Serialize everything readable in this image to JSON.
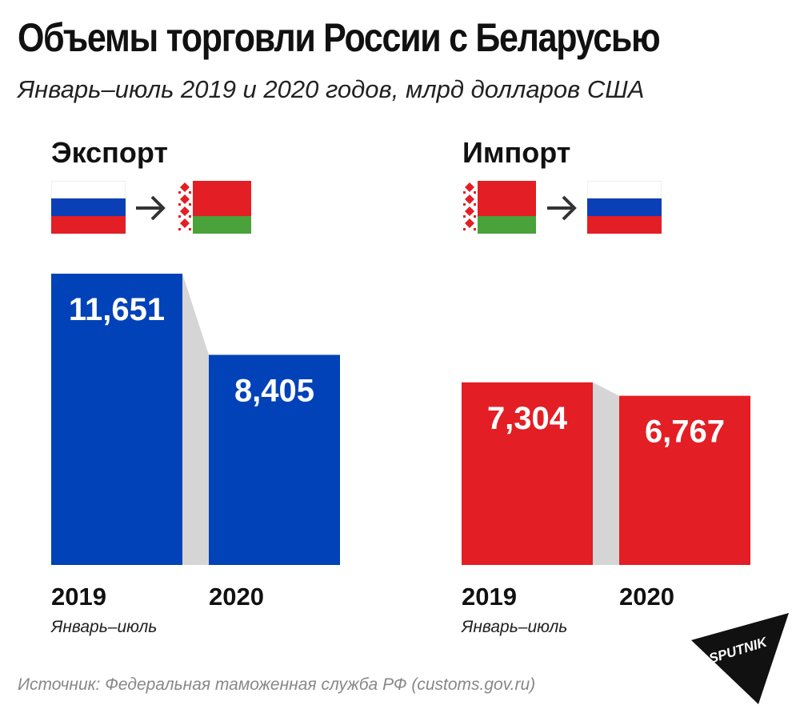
{
  "header": {
    "title": "Объемы торговли России с Беларусью",
    "subtitle": "Январь–июль 2019 и 2020 годов, млрд долларов США"
  },
  "colors": {
    "export_bar": "#0242b8",
    "import_bar": "#e31e24",
    "connector": "#d5d5d5",
    "label": "#ffffff"
  },
  "chart_data": [
    {
      "type": "bar",
      "title": "Экспорт",
      "flags_from_to": [
        "russia-flag",
        "belarus-flag"
      ],
      "categories": [
        "2019",
        "2020"
      ],
      "values": [
        11.651,
        8.405
      ],
      "value_labels": [
        "11,651",
        "8,405"
      ],
      "ylim": [
        0,
        11.651
      ],
      "grid": false,
      "period_label": "Январь–июль"
    },
    {
      "type": "bar",
      "title": "Импорт",
      "flags_from_to": [
        "belarus-flag",
        "russia-flag"
      ],
      "categories": [
        "2019",
        "2020"
      ],
      "values": [
        7.304,
        6.767
      ],
      "value_labels": [
        "7,304",
        "6,767"
      ],
      "ylim": [
        0,
        11.651
      ],
      "grid": false,
      "period_label": "Январь–июль"
    }
  ],
  "footer": {
    "source": "Источник: Федеральная таможенная служба РФ (customs.gov.ru)",
    "logo_text": "SPUTNIK"
  }
}
